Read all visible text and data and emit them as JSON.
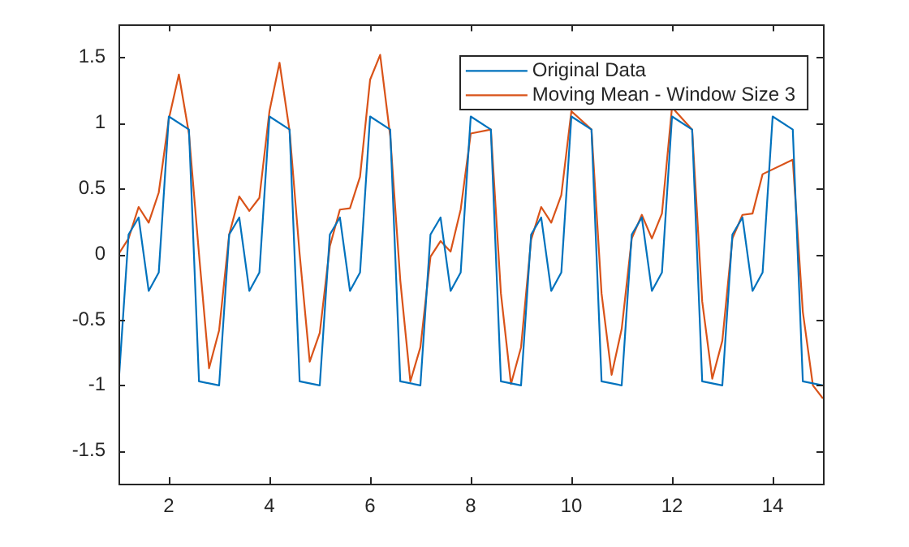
{
  "chart_data": {
    "type": "line",
    "x": [
      1.0,
      1.2,
      1.4,
      1.6,
      1.8,
      2.0,
      2.2,
      2.4,
      2.6,
      2.8,
      3.0,
      3.2,
      3.4,
      3.6,
      3.8,
      4.0,
      4.2,
      4.4,
      4.6,
      4.8,
      5.0,
      5.2,
      5.4,
      5.6,
      5.8,
      6.0,
      6.2,
      6.4,
      6.6,
      6.8,
      7.0,
      7.2,
      7.4,
      7.6,
      7.8,
      8.0,
      8.2,
      8.4,
      8.6,
      8.8,
      9.0,
      9.2,
      9.4,
      9.6,
      9.8,
      10.0,
      10.2,
      10.4,
      10.6,
      10.8,
      11.0,
      11.2,
      11.4,
      11.6,
      11.8,
      12.0,
      12.2,
      12.4,
      12.6,
      12.8,
      13.0,
      13.2,
      13.4,
      13.6,
      13.8,
      14.0,
      14.2,
      14.4,
      14.6,
      14.8,
      15.0
    ],
    "series": [
      {
        "name": "Original Data",
        "color": "#0072bd",
        "values": [
          -1.0,
          0.15,
          0.28,
          -0.28,
          -0.14,
          1.05,
          null,
          0.95,
          -0.97,
          null,
          -1.0,
          0.15,
          0.28,
          -0.28,
          -0.14,
          1.05,
          null,
          0.95,
          -0.97,
          null,
          -1.0,
          0.15,
          0.28,
          -0.28,
          -0.14,
          1.05,
          null,
          0.95,
          -0.97,
          null,
          -1.0,
          0.15,
          0.28,
          -0.28,
          -0.14,
          1.05,
          null,
          0.95,
          -0.97,
          null,
          -1.0,
          0.15,
          0.28,
          -0.28,
          -0.14,
          1.05,
          null,
          0.95,
          -0.97,
          null,
          -1.0,
          0.15,
          0.28,
          -0.28,
          -0.14,
          1.05,
          null,
          0.95,
          -0.97,
          null,
          -1.0,
          0.15,
          0.28,
          -0.28,
          -0.14,
          1.05,
          null,
          0.95,
          -0.97,
          null,
          -1.0
        ]
      },
      {
        "name": "Moving Mean - Window Size 3",
        "color": "#d95319",
        "values": [
          0.0,
          0.12,
          0.36,
          0.24,
          0.47,
          1.03,
          1.37,
          0.92,
          0.0,
          -0.87,
          -0.58,
          0.15,
          0.44,
          0.33,
          0.43,
          1.09,
          1.46,
          0.94,
          0.0,
          -0.82,
          -0.6,
          0.06,
          0.34,
          0.35,
          0.59,
          1.33,
          1.52,
          0.9,
          -0.2,
          -0.97,
          -0.71,
          -0.02,
          0.1,
          0.02,
          0.34,
          0.92,
          null,
          0.95,
          -0.3,
          -0.99,
          -0.71,
          0.11,
          0.36,
          0.24,
          0.45,
          1.09,
          null,
          0.95,
          -0.3,
          -0.92,
          -0.57,
          0.12,
          0.3,
          0.12,
          0.31,
          1.12,
          null,
          0.95,
          -0.36,
          -0.95,
          -0.66,
          0.12,
          0.3,
          0.31,
          0.61,
          null,
          null,
          0.72,
          -0.44,
          -1.0,
          -1.1
        ]
      }
    ],
    "xlim": [
      1,
      15
    ],
    "xticks": [
      2,
      4,
      6,
      8,
      10,
      12,
      14
    ],
    "ylim": [
      -1.75,
      1.75
    ],
    "yticks": [
      -1.5,
      -1,
      -0.5,
      0,
      0.5,
      1,
      1.5
    ],
    "grid": false,
    "legend": "top right",
    "marker": "none",
    "line_style": "solid"
  }
}
